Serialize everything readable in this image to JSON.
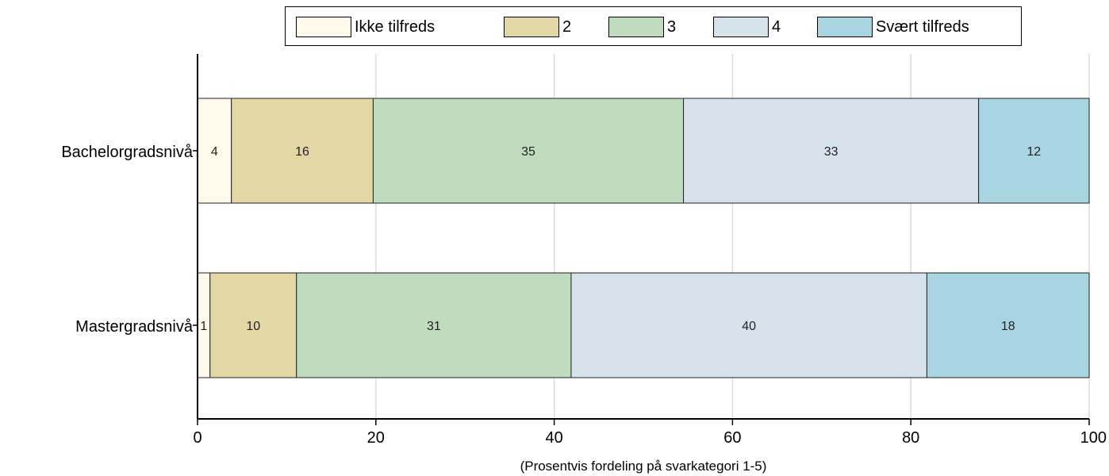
{
  "chart_data": {
    "type": "bar",
    "orientation": "horizontal",
    "stacked": true,
    "categories": [
      "Bachelorgradsnivå",
      "Mastergradsnivå"
    ],
    "series": [
      {
        "name": "Ikke tilfreds",
        "color": "#fef9ea",
        "values": [
          3.8,
          1.4
        ],
        "labels": [
          "4",
          "1"
        ]
      },
      {
        "name": "2",
        "color": "#e3d7a6",
        "values": [
          15.9,
          9.7
        ],
        "labels": [
          "16",
          "10"
        ]
      },
      {
        "name": "3",
        "color": "#bfdcbf",
        "values": [
          34.8,
          30.8
        ],
        "labels": [
          "35",
          "31"
        ]
      },
      {
        "name": "4",
        "color": "#d6e3eb",
        "values": [
          33.1,
          39.9
        ],
        "labels": [
          "33",
          "40"
        ]
      },
      {
        "name": "Svært tilfreds",
        "color": "#a9d4e2",
        "values": [
          12.4,
          18.2
        ],
        "labels": [
          "12",
          "18"
        ]
      }
    ],
    "xlabel": "(Prosentvis fordeling på svarkategori 1-5)",
    "xlim": [
      0,
      100
    ],
    "xticks": [
      "0",
      "20",
      "40",
      "60",
      "80",
      "100"
    ],
    "grid": true,
    "legend_position": "top"
  }
}
